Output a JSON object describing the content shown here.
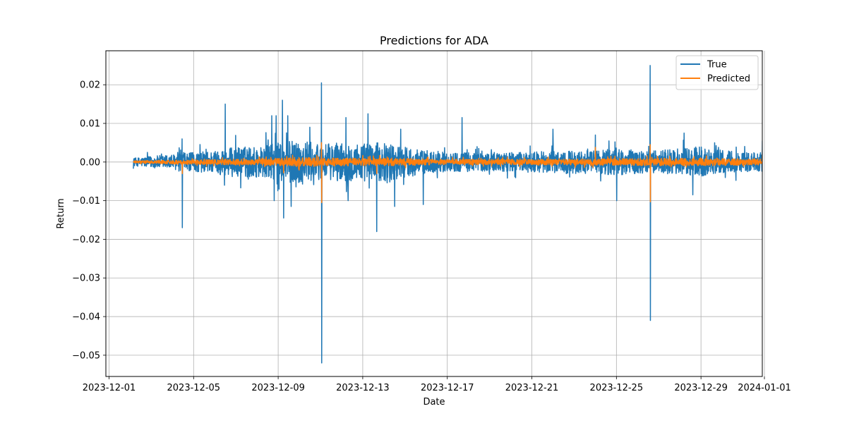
{
  "chart_data": {
    "type": "line",
    "title": "Predictions for ADA",
    "xlabel": "Date",
    "ylabel": "Return",
    "grid": true,
    "legend_position": "top-right",
    "x_range_days": [
      -0.15,
      30.9
    ],
    "ylim": [
      -0.0555,
      0.0288
    ],
    "x_ticks": [
      {
        "day": 0,
        "label": "2023-12-01"
      },
      {
        "day": 4,
        "label": "2023-12-05"
      },
      {
        "day": 8,
        "label": "2023-12-09"
      },
      {
        "day": 12,
        "label": "2023-12-13"
      },
      {
        "day": 16,
        "label": "2023-12-17"
      },
      {
        "day": 20,
        "label": "2023-12-21"
      },
      {
        "day": 24,
        "label": "2023-12-25"
      },
      {
        "day": 28,
        "label": "2023-12-29"
      },
      {
        "day": 31,
        "label": "2024-01-01"
      }
    ],
    "y_ticks": [
      {
        "value": 0.02,
        "label": "0.02"
      },
      {
        "value": 0.01,
        "label": "0.01"
      },
      {
        "value": 0.0,
        "label": "0.00"
      },
      {
        "value": -0.01,
        "label": "−0.01"
      },
      {
        "value": -0.02,
        "label": "−0.02"
      },
      {
        "value": -0.03,
        "label": "−0.03"
      },
      {
        "value": -0.04,
        "label": "−0.04"
      },
      {
        "value": -0.05,
        "label": "−0.05"
      }
    ],
    "series": [
      {
        "name": "True",
        "color": "#1f77b4",
        "x_start_day": 1.15,
        "x_end_day": 30.95,
        "envelope": [
          {
            "day": 1.15,
            "amp": 0.001
          },
          {
            "day": 2.0,
            "amp": 0.0015
          },
          {
            "day": 3.0,
            "amp": 0.002
          },
          {
            "day": 4.0,
            "amp": 0.0025
          },
          {
            "day": 5.0,
            "amp": 0.003
          },
          {
            "day": 6.0,
            "amp": 0.004
          },
          {
            "day": 7.0,
            "amp": 0.004
          },
          {
            "day": 8.0,
            "amp": 0.005
          },
          {
            "day": 9.0,
            "amp": 0.006
          },
          {
            "day": 10.0,
            "amp": 0.0045
          },
          {
            "day": 11.0,
            "amp": 0.005
          },
          {
            "day": 12.0,
            "amp": 0.005
          },
          {
            "day": 13.0,
            "amp": 0.005
          },
          {
            "day": 14.0,
            "amp": 0.004
          },
          {
            "day": 15.0,
            "amp": 0.003
          },
          {
            "day": 16.0,
            "amp": 0.0025
          },
          {
            "day": 17.0,
            "amp": 0.0025
          },
          {
            "day": 18.0,
            "amp": 0.0025
          },
          {
            "day": 19.0,
            "amp": 0.0025
          },
          {
            "day": 20.0,
            "amp": 0.0025
          },
          {
            "day": 21.0,
            "amp": 0.003
          },
          {
            "day": 22.0,
            "amp": 0.003
          },
          {
            "day": 23.0,
            "amp": 0.003
          },
          {
            "day": 24.0,
            "amp": 0.0035
          },
          {
            "day": 25.0,
            "amp": 0.003
          },
          {
            "day": 26.0,
            "amp": 0.003
          },
          {
            "day": 27.0,
            "amp": 0.0035
          },
          {
            "day": 28.0,
            "amp": 0.004
          },
          {
            "day": 29.0,
            "amp": 0.003
          },
          {
            "day": 30.0,
            "amp": 0.0025
          },
          {
            "day": 30.95,
            "amp": 0.0025
          }
        ],
        "spikes": [
          {
            "day": 3.45,
            "value": -0.017
          },
          {
            "day": 3.45,
            "value": 0.006
          },
          {
            "day": 5.5,
            "value": 0.015
          },
          {
            "day": 5.45,
            "value": -0.006
          },
          {
            "day": 7.7,
            "value": 0.012
          },
          {
            "day": 7.9,
            "value": 0.012
          },
          {
            "day": 8.2,
            "value": 0.016
          },
          {
            "day": 8.25,
            "value": -0.0145
          },
          {
            "day": 8.45,
            "value": 0.012
          },
          {
            "day": 8.6,
            "value": -0.0115
          },
          {
            "day": 7.8,
            "value": -0.01
          },
          {
            "day": 9.5,
            "value": 0.009
          },
          {
            "day": 10.05,
            "value": 0.0205
          },
          {
            "day": 10.05,
            "value": -0.052
          },
          {
            "day": 11.2,
            "value": 0.0115
          },
          {
            "day": 11.3,
            "value": -0.01
          },
          {
            "day": 12.25,
            "value": 0.0125
          },
          {
            "day": 12.65,
            "value": -0.018
          },
          {
            "day": 13.5,
            "value": -0.0115
          },
          {
            "day": 13.8,
            "value": 0.0085
          },
          {
            "day": 14.85,
            "value": -0.011
          },
          {
            "day": 16.7,
            "value": 0.0115
          },
          {
            "day": 21.0,
            "value": 0.0085
          },
          {
            "day": 23.0,
            "value": 0.007
          },
          {
            "day": 24.0,
            "value": -0.01
          },
          {
            "day": 25.6,
            "value": 0.025
          },
          {
            "day": 25.6,
            "value": -0.041
          },
          {
            "day": 27.2,
            "value": 0.0075
          },
          {
            "day": 27.6,
            "value": -0.0085
          },
          {
            "day": 30.9,
            "value": 0.0055
          },
          {
            "day": 30.9,
            "value": -0.0085
          }
        ]
      },
      {
        "name": "Predicted",
        "color": "#ff7f0e",
        "x_start_day": 1.15,
        "x_end_day": 30.95,
        "envelope": [
          {
            "day": 1.15,
            "amp": 0.0003
          },
          {
            "day": 4.0,
            "amp": 0.0006
          },
          {
            "day": 7.0,
            "amp": 0.0008
          },
          {
            "day": 9.0,
            "amp": 0.0012
          },
          {
            "day": 11.0,
            "amp": 0.001
          },
          {
            "day": 13.0,
            "amp": 0.001
          },
          {
            "day": 16.0,
            "amp": 0.0007
          },
          {
            "day": 20.0,
            "amp": 0.0007
          },
          {
            "day": 24.0,
            "amp": 0.0009
          },
          {
            "day": 27.0,
            "amp": 0.001
          },
          {
            "day": 30.95,
            "amp": 0.0008
          }
        ],
        "spikes": [
          {
            "day": 3.45,
            "value": -0.003
          },
          {
            "day": 8.25,
            "value": -0.0028
          },
          {
            "day": 10.05,
            "value": 0.005
          },
          {
            "day": 10.05,
            "value": -0.0105
          },
          {
            "day": 12.65,
            "value": -0.003
          },
          {
            "day": 23.0,
            "value": 0.0038
          },
          {
            "day": 25.6,
            "value": 0.0045
          },
          {
            "day": 25.6,
            "value": -0.0103
          },
          {
            "day": 30.9,
            "value": 0.002
          },
          {
            "day": 30.9,
            "value": -0.002
          }
        ]
      }
    ]
  }
}
